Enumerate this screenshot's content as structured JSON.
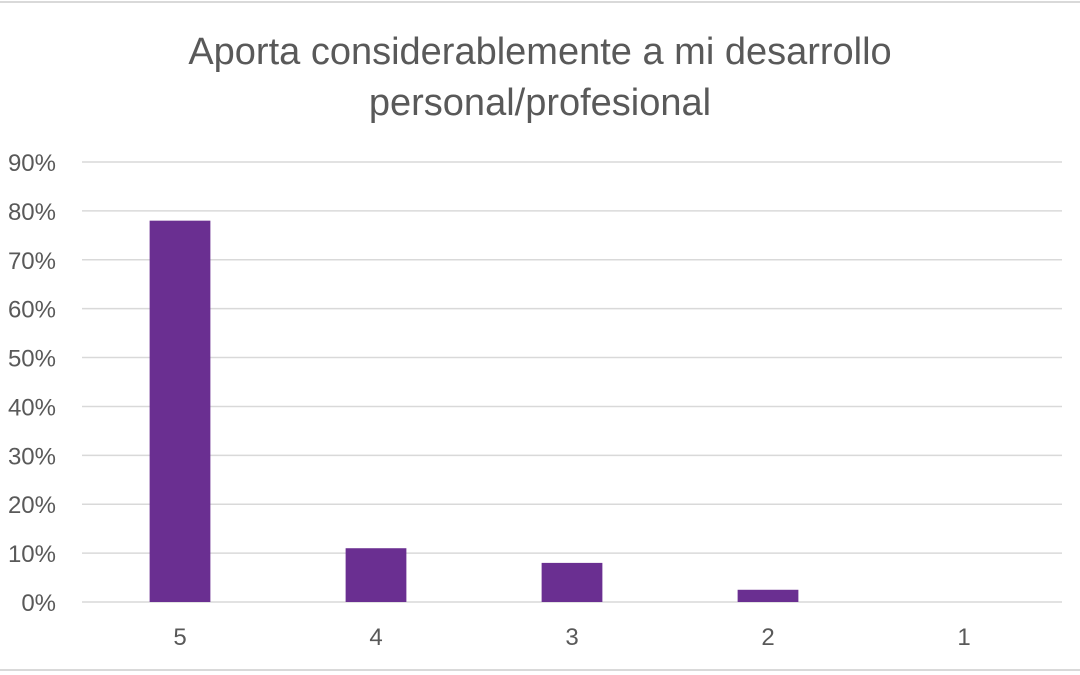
{
  "chart_data": {
    "type": "bar",
    "title_lines": [
      "Aporta considerablemente a mi desarrollo",
      "personal/profesional"
    ],
    "categories": [
      "5",
      "4",
      "3",
      "2",
      "1"
    ],
    "values": [
      0.78,
      0.11,
      0.08,
      0.025,
      0
    ],
    "ylim": [
      0,
      0.9
    ],
    "y_ticks": [
      "0%",
      "10%",
      "20%",
      "30%",
      "40%",
      "50%",
      "60%",
      "70%",
      "80%",
      "90%"
    ],
    "xlabel": "",
    "ylabel": "",
    "grid": true,
    "legend": "none",
    "bar_color": "#6a2f91"
  }
}
